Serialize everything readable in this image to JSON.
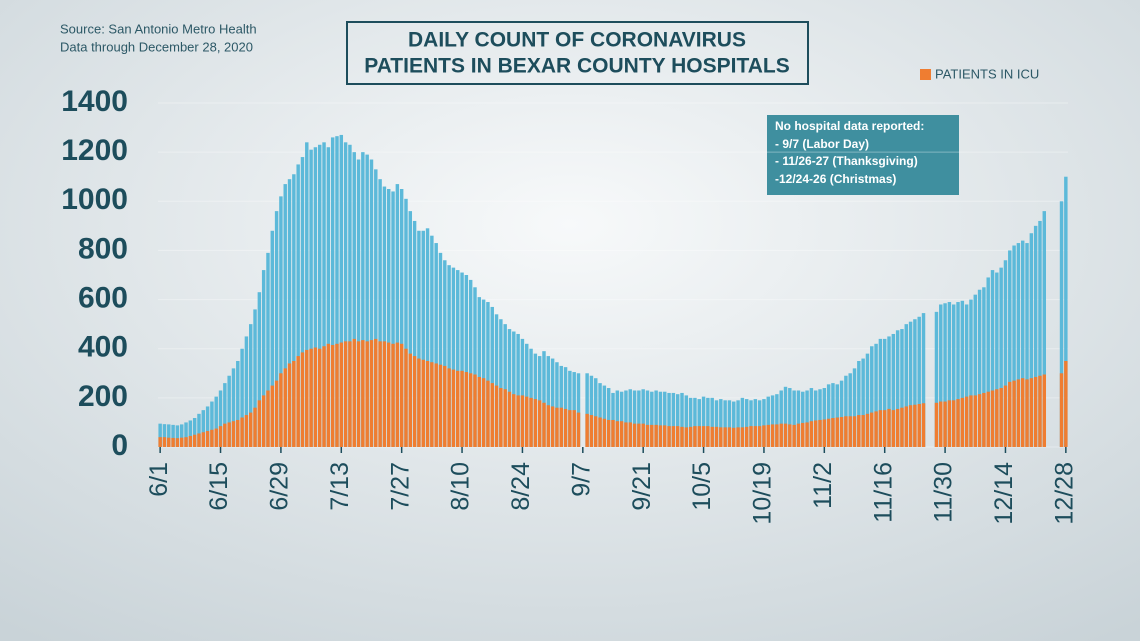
{
  "chart_data": {
    "type": "bar",
    "title": [
      "DAILY COUNT OF CORONAVIRUS",
      "PATIENTS IN BEXAR COUNTY HOSPITALS"
    ],
    "subtitle": [
      "Source: San Antonio Metro Health",
      "Data through December 28, 2020"
    ],
    "annotation": [
      "No hospital data reported:",
      "- 9/7 (Labor Day)",
      "- 11/26-27 (Thanksgiving)",
      "-12/24-26 (Christmas)"
    ],
    "legend": "top-right",
    "grid": true,
    "ylim": [
      0,
      1400
    ],
    "yticks": [
      0,
      200,
      400,
      600,
      800,
      1000,
      1200,
      1400
    ],
    "categories": [
      "6/1",
      null,
      null,
      null,
      null,
      null,
      null,
      null,
      null,
      null,
      null,
      null,
      null,
      null,
      "6/15",
      null,
      null,
      null,
      null,
      null,
      null,
      null,
      null,
      null,
      null,
      null,
      null,
      null,
      "6/29",
      null,
      null,
      null,
      null,
      null,
      null,
      null,
      null,
      null,
      null,
      null,
      null,
      null,
      "7/13",
      null,
      null,
      null,
      null,
      null,
      null,
      null,
      null,
      null,
      null,
      null,
      null,
      null,
      "7/27",
      null,
      null,
      null,
      null,
      null,
      null,
      null,
      null,
      null,
      null,
      null,
      null,
      null,
      "8/10",
      null,
      null,
      null,
      null,
      null,
      null,
      null,
      null,
      null,
      null,
      null,
      null,
      null,
      "8/24",
      null,
      null,
      null,
      null,
      null,
      null,
      null,
      null,
      null,
      null,
      null,
      null,
      null,
      "9/7",
      null,
      null,
      null,
      null,
      null,
      null,
      null,
      null,
      null,
      null,
      null,
      null,
      null,
      "9/21",
      null,
      null,
      null,
      null,
      null,
      null,
      null,
      null,
      null,
      null,
      null,
      null,
      null,
      "10/5",
      null,
      null,
      null,
      null,
      null,
      null,
      null,
      null,
      null,
      null,
      null,
      null,
      null,
      "10/19",
      null,
      null,
      null,
      null,
      null,
      null,
      null,
      null,
      null,
      null,
      null,
      null,
      null,
      "11/2",
      null,
      null,
      null,
      null,
      null,
      null,
      null,
      null,
      null,
      null,
      null,
      null,
      null,
      "11/16",
      null,
      null,
      null,
      null,
      null,
      null,
      null,
      null,
      null,
      null,
      null,
      null,
      null,
      "11/30",
      null,
      null,
      null,
      null,
      null,
      null,
      null,
      null,
      null,
      null,
      null,
      null,
      null,
      "12/14",
      null,
      null,
      null,
      null,
      null,
      null,
      null,
      null,
      null,
      null,
      null,
      null,
      null,
      "12/28"
    ],
    "series": [
      {
        "color": "#5cb9d9",
        "values": [
          95,
          93,
          92,
          90,
          88,
          92,
          100,
          108,
          118,
          135,
          150,
          165,
          185,
          205,
          230,
          260,
          290,
          320,
          350,
          400,
          450,
          500,
          560,
          630,
          720,
          790,
          880,
          960,
          1020,
          1070,
          1090,
          1110,
          1150,
          1180,
          1240,
          1210,
          1220,
          1230,
          1240,
          1220,
          1260,
          1265,
          1270,
          1240,
          1230,
          1200,
          1170,
          1200,
          1190,
          1170,
          1130,
          1090,
          1060,
          1050,
          1040,
          1070,
          1050,
          1010,
          960,
          920,
          880,
          880,
          890,
          860,
          830,
          790,
          760,
          740,
          730,
          720,
          710,
          700,
          680,
          650,
          610,
          600,
          590,
          570,
          540,
          520,
          500,
          480,
          470,
          460,
          440,
          420,
          400,
          380,
          370,
          390,
          370,
          360,
          345,
          330,
          325,
          310,
          305,
          300,
          null,
          300,
          290,
          280,
          260,
          250,
          240,
          220,
          230,
          225,
          230,
          235,
          230,
          230,
          235,
          230,
          225,
          230,
          225,
          225,
          220,
          220,
          215,
          220,
          210,
          200,
          200,
          195,
          205,
          200,
          200,
          190,
          195,
          190,
          190,
          185,
          190,
          200,
          195,
          190,
          195,
          190,
          195,
          205,
          210,
          215,
          230,
          245,
          240,
          230,
          230,
          225,
          230,
          240,
          230,
          235,
          240,
          255,
          260,
          255,
          270,
          290,
          300,
          320,
          350,
          360,
          380,
          410,
          420,
          440,
          440,
          450,
          460,
          475,
          480,
          500,
          510,
          520,
          530,
          545,
          null,
          null,
          550,
          580,
          585,
          590,
          580,
          590,
          595,
          580,
          600,
          620,
          640,
          650,
          690,
          720,
          710,
          730,
          760,
          800,
          820,
          830,
          840,
          830,
          870,
          900,
          920,
          960,
          null,
          null,
          null,
          1000,
          1100
        ]
      },
      {
        "name": "PATIENTS IN ICU",
        "color": "#ef7d31",
        "values": [
          40,
          40,
          38,
          37,
          36,
          38,
          40,
          45,
          50,
          55,
          60,
          65,
          70,
          75,
          85,
          95,
          100,
          105,
          110,
          120,
          130,
          140,
          160,
          190,
          210,
          230,
          250,
          270,
          300,
          320,
          340,
          350,
          370,
          385,
          395,
          400,
          405,
          400,
          410,
          420,
          415,
          420,
          425,
          430,
          430,
          440,
          430,
          435,
          430,
          435,
          440,
          430,
          430,
          425,
          420,
          425,
          420,
          400,
          380,
          370,
          360,
          355,
          350,
          345,
          340,
          335,
          330,
          320,
          315,
          310,
          310,
          305,
          300,
          295,
          285,
          280,
          270,
          260,
          250,
          240,
          235,
          225,
          215,
          210,
          210,
          205,
          200,
          195,
          190,
          180,
          170,
          165,
          160,
          160,
          155,
          150,
          150,
          140,
          null,
          135,
          130,
          125,
          120,
          115,
          110,
          110,
          105,
          105,
          100,
          100,
          95,
          95,
          95,
          90,
          90,
          90,
          88,
          88,
          85,
          85,
          85,
          82,
          80,
          82,
          85,
          85,
          85,
          85,
          82,
          82,
          80,
          80,
          80,
          78,
          80,
          80,
          82,
          85,
          85,
          85,
          88,
          90,
          92,
          92,
          95,
          95,
          92,
          90,
          95,
          98,
          100,
          105,
          108,
          110,
          112,
          115,
          118,
          120,
          122,
          125,
          125,
          125,
          130,
          130,
          135,
          140,
          145,
          150,
          150,
          155,
          150,
          155,
          160,
          165,
          170,
          172,
          175,
          178,
          null,
          null,
          180,
          185,
          185,
          190,
          190,
          195,
          200,
          205,
          210,
          210,
          215,
          220,
          225,
          230,
          235,
          240,
          250,
          265,
          270,
          275,
          280,
          275,
          280,
          285,
          290,
          295,
          null,
          null,
          null,
          300,
          350
        ]
      }
    ]
  }
}
